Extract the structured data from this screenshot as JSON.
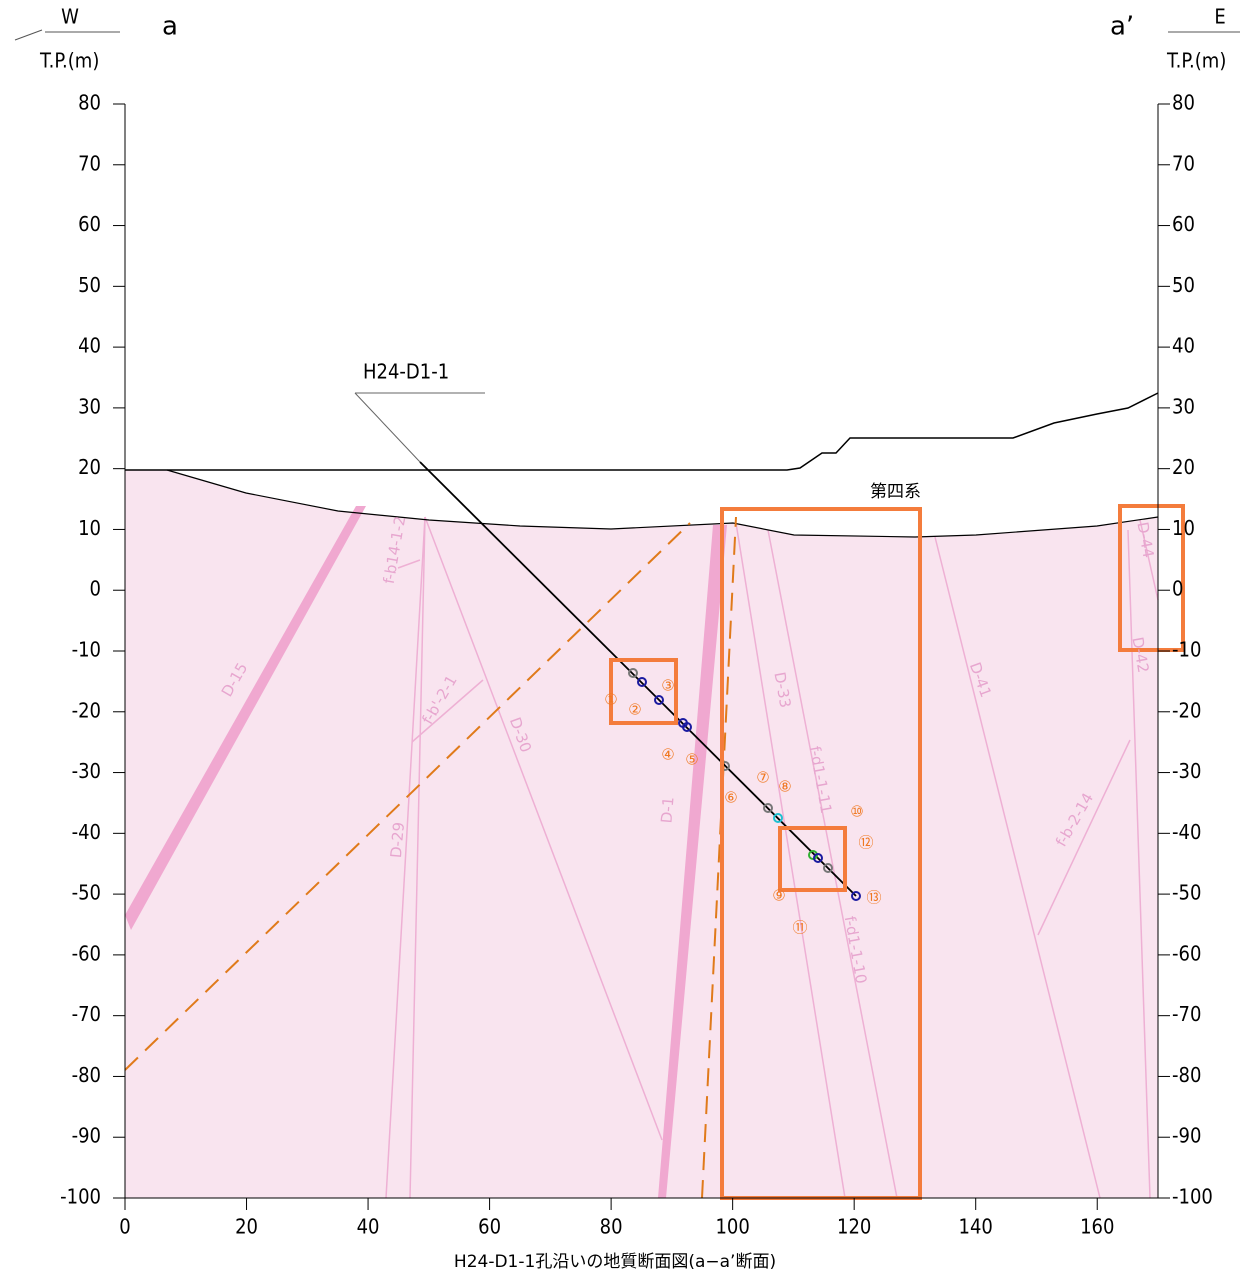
{
  "header": {
    "left_dir": "W",
    "left_label": "a",
    "left_unit": "T.P.(m)",
    "right_dir": "E",
    "right_label": "a’",
    "right_unit": "T.P.(m)"
  },
  "axes": {
    "xlim": [
      0,
      170
    ],
    "ylim": [
      -100,
      80
    ],
    "xticks": [
      0,
      20,
      40,
      60,
      80,
      100,
      120,
      140,
      160
    ],
    "yticks": [
      80,
      70,
      60,
      50,
      40,
      30,
      20,
      10,
      0,
      -10,
      -20,
      -30,
      -40,
      -50,
      -60,
      -70,
      -80,
      -90,
      -100
    ]
  },
  "labels": {
    "borehole": "H24-D1-1",
    "quaternary": "第四系",
    "caption": "H24-D1-1孔沿いの地質断面図(a−a’断面)"
  },
  "faults": [
    "D-15",
    "f-b14-1-2",
    "f-b'-2-1",
    "D-30",
    "D-29",
    "D-1",
    "D-33",
    "f-d1-1-11",
    "f-d1-1-10",
    "D-41",
    "f-b-2-14",
    "D-44",
    "D-42"
  ],
  "markers": [
    "①",
    "②",
    "③",
    "④",
    "⑤",
    "⑥",
    "⑦",
    "⑧",
    "⑨",
    "⑩",
    "⑪",
    "⑫",
    "⑬"
  ]
}
